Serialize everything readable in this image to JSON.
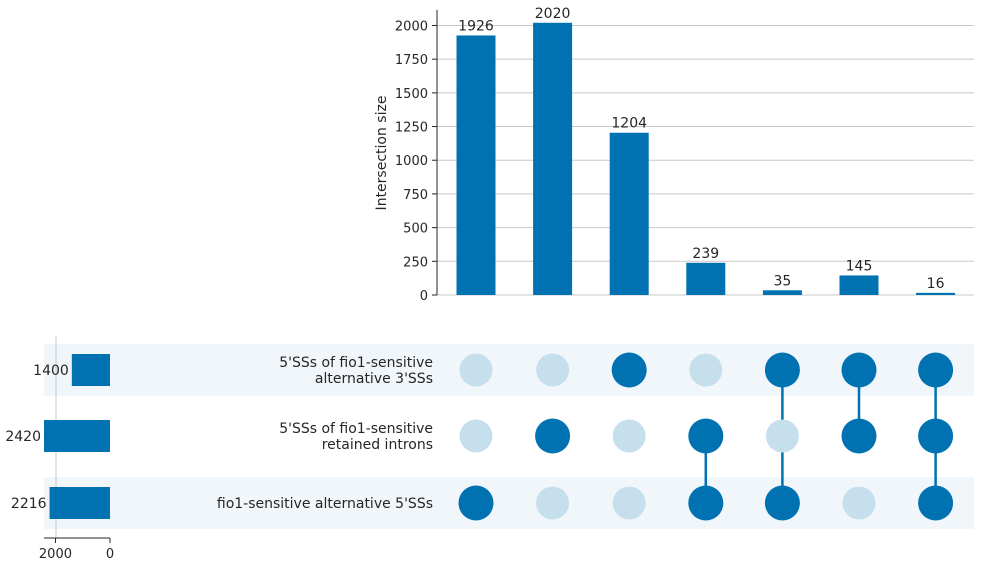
{
  "chart_data": {
    "type": "bar",
    "subtype": "upset",
    "ylabel": "Intersection size",
    "ylim": [
      0,
      2100
    ],
    "yticks": [
      0,
      250,
      500,
      750,
      1000,
      1250,
      1500,
      1750,
      2000
    ],
    "values": [
      1926,
      2020,
      1204,
      239,
      35,
      145,
      16
    ],
    "sets": [
      {
        "name": "5'SSs of fio1-sensitive alternative 3'SSs",
        "lines": [
          "5'SSs of fio1-sensitive",
          "alternative 3'SSs"
        ],
        "size": 1400
      },
      {
        "name": "5'SSs of fio1-sensitive retained introns",
        "lines": [
          "5'SSs of fio1-sensitive",
          "retained introns"
        ],
        "size": 2420
      },
      {
        "name": "fio1-sensitive alternative 5'SSs",
        "lines": [
          "fio1-sensitive alternative 5'SSs"
        ],
        "size": 2216
      }
    ],
    "membership": [
      [
        0,
        0,
        1
      ],
      [
        0,
        1,
        0
      ],
      [
        1,
        0,
        0
      ],
      [
        0,
        1,
        1
      ],
      [
        1,
        0,
        1
      ],
      [
        1,
        1,
        0
      ],
      [
        1,
        1,
        1
      ]
    ],
    "set_size_xlim": [
      0,
      2420
    ],
    "set_size_ticks": [
      2000,
      0
    ],
    "grid": true,
    "colors": {
      "bar": "#0072b2",
      "inactive_dot": "#c6dfed",
      "stripe": "#f1f6fb",
      "grid": "#c8c8c8"
    }
  }
}
